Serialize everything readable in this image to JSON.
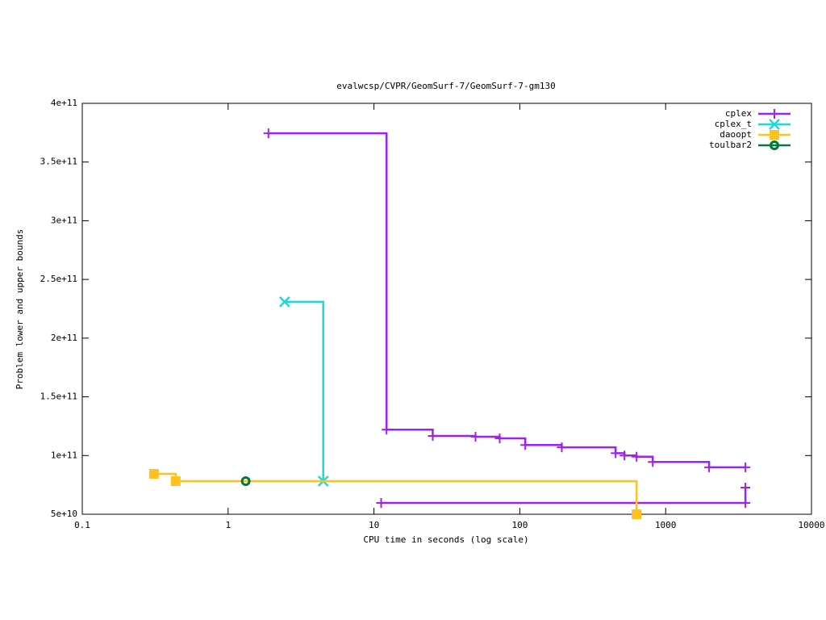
{
  "chart_data": {
    "type": "line",
    "step": "post",
    "title": "evalwcsp/CVPR/GeomSurf-7/GeomSurf-7-gm130",
    "x_label": "CPU time in seconds (log scale)",
    "y_label": "Problem lower and upper bounds",
    "xscale": "log",
    "xlim": [
      0.1,
      10000
    ],
    "xticks": [
      0.1,
      1,
      10,
      100,
      1000,
      10000
    ],
    "ylim": [
      50000000000,
      400000000000
    ],
    "yticks": [
      {
        "value": 50000000000,
        "label": "5e+10"
      },
      {
        "value": 100000000000,
        "label": "1e+11"
      },
      {
        "value": 150000000000,
        "label": "1.5e+11"
      },
      {
        "value": 200000000000,
        "label": "2e+11"
      },
      {
        "value": 250000000000,
        "label": "2.5e+11"
      },
      {
        "value": 300000000000,
        "label": "3e+11"
      },
      {
        "value": 350000000000,
        "label": "3.5e+11"
      },
      {
        "value": 400000000000,
        "label": "4e+11"
      }
    ],
    "legend": "top right",
    "series": [
      {
        "name": "cplex",
        "color": "#a020f0",
        "marker": "plus",
        "x": [
          1.89,
          12.2,
          25.3,
          49.7,
          72.8,
          109,
          194,
          454,
          522,
          632,
          816,
          1986,
          3524,
          null,
          11.2,
          3524,
          3524
        ],
        "values": [
          374500000000,
          122000000000,
          116700000000,
          116000000000,
          114600000000,
          109000000000,
          107000000000,
          102000000000,
          100000000000,
          99000000000,
          94500000000,
          90000000000,
          90000000000,
          null,
          59600000000,
          59600000000,
          72700000000
        ]
      },
      {
        "name": "cplex_t",
        "color": "#20d8d8",
        "marker": "cross",
        "x": [
          2.44,
          4.49
        ],
        "values": [
          230900000000,
          78200000000
        ]
      },
      {
        "name": "daoopt",
        "color": "#ffc020",
        "marker": "square",
        "x": [
          0.31,
          0.437,
          632
        ],
        "values": [
          84400000000,
          78200000000,
          50000000000
        ]
      },
      {
        "name": "toulbar2",
        "color": "#007a3d",
        "marker": "circle",
        "x": [
          1.32
        ],
        "values": [
          78200000000
        ]
      }
    ]
  }
}
